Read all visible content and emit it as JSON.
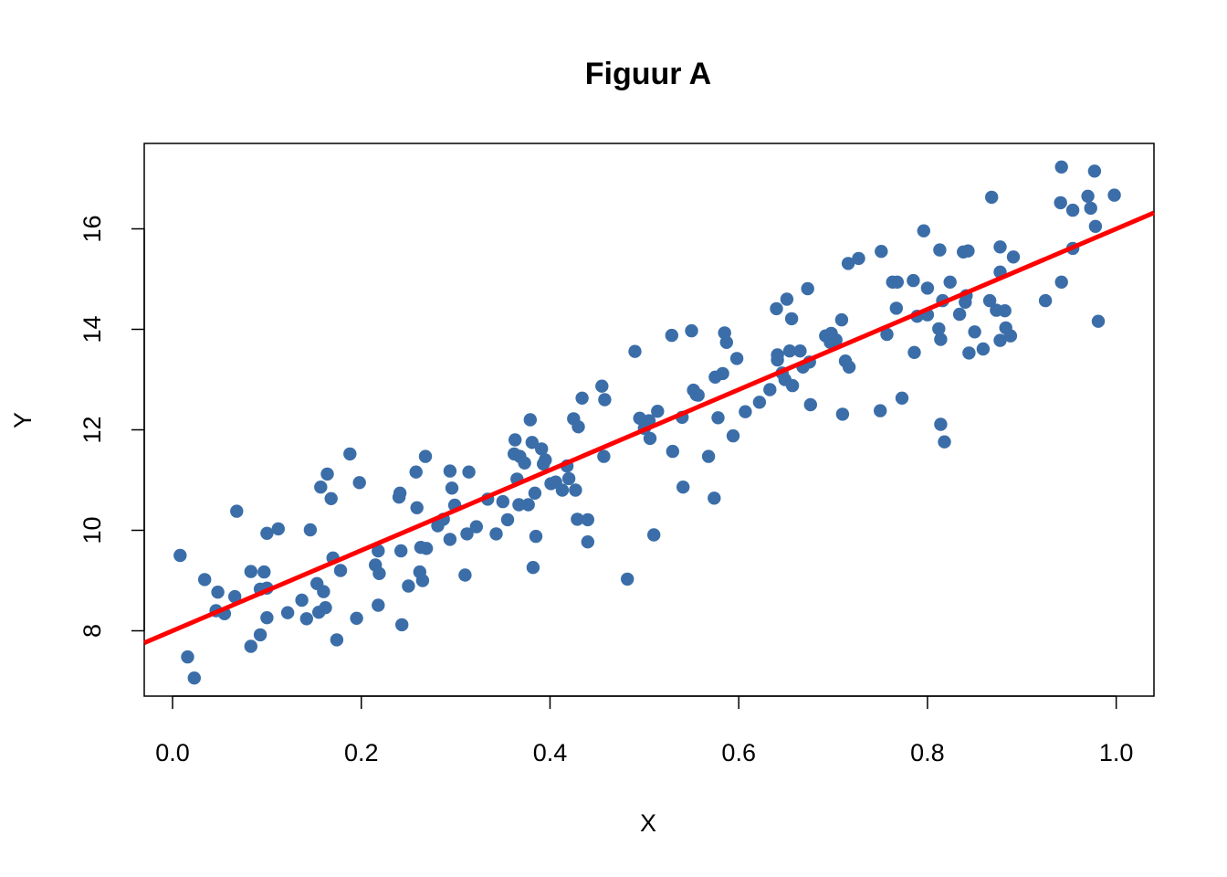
{
  "chart_data": {
    "type": "scatter",
    "title": "Figuur A",
    "xlabel": "X",
    "ylabel": "Y",
    "xlim": [
      -0.03,
      1.04
    ],
    "ylim": [
      6.7,
      17.7
    ],
    "x_ticks": [
      0.0,
      0.2,
      0.4,
      0.6,
      0.8,
      1.0
    ],
    "x_tick_labels": [
      "0.0",
      "0.2",
      "0.4",
      "0.6",
      "0.8",
      "1.0"
    ],
    "y_ticks": [
      8,
      10,
      12,
      14,
      16
    ],
    "y_tick_labels": [
      "8",
      "10",
      "12",
      "14",
      "16"
    ],
    "grid": false,
    "legend": "none",
    "point_color": "#3B6EA8",
    "line_color": "#FF0000",
    "regression_line": {
      "intercept": 8.0,
      "slope": 8.0
    },
    "points": [
      [
        0.008,
        9.5
      ],
      [
        0.016,
        7.48
      ],
      [
        0.023,
        7.06
      ],
      [
        0.034,
        9.02
      ],
      [
        0.046,
        8.4
      ],
      [
        0.048,
        8.77
      ],
      [
        0.055,
        8.34
      ],
      [
        0.066,
        8.68
      ],
      [
        0.068,
        10.38
      ],
      [
        0.083,
        9.18
      ],
      [
        0.083,
        7.69
      ],
      [
        0.093,
        7.92
      ],
      [
        0.093,
        8.83
      ],
      [
        0.097,
        9.17
      ],
      [
        0.1,
        8.26
      ],
      [
        0.1,
        8.85
      ],
      [
        0.1,
        9.94
      ],
      [
        0.112,
        10.03
      ],
      [
        0.122,
        8.36
      ],
      [
        0.137,
        8.61
      ],
      [
        0.142,
        8.24
      ],
      [
        0.146,
        10.01
      ],
      [
        0.153,
        8.94
      ],
      [
        0.155,
        8.37
      ],
      [
        0.157,
        10.86
      ],
      [
        0.16,
        8.78
      ],
      [
        0.162,
        8.46
      ],
      [
        0.164,
        11.12
      ],
      [
        0.168,
        10.63
      ],
      [
        0.17,
        9.45
      ],
      [
        0.174,
        7.82
      ],
      [
        0.178,
        9.2
      ],
      [
        0.188,
        11.52
      ],
      [
        0.195,
        8.25
      ],
      [
        0.198,
        10.95
      ],
      [
        0.215,
        9.31
      ],
      [
        0.218,
        9.59
      ],
      [
        0.218,
        8.51
      ],
      [
        0.219,
        9.14
      ],
      [
        0.24,
        10.66
      ],
      [
        0.241,
        10.74
      ],
      [
        0.242,
        9.59
      ],
      [
        0.243,
        8.12
      ],
      [
        0.25,
        8.89
      ],
      [
        0.258,
        11.16
      ],
      [
        0.259,
        10.45
      ],
      [
        0.262,
        9.17
      ],
      [
        0.263,
        9.66
      ],
      [
        0.265,
        9.0
      ],
      [
        0.268,
        11.47
      ],
      [
        0.269,
        9.64
      ],
      [
        0.281,
        10.09
      ],
      [
        0.287,
        10.22
      ],
      [
        0.294,
        9.82
      ],
      [
        0.294,
        11.18
      ],
      [
        0.296,
        10.84
      ],
      [
        0.299,
        10.5
      ],
      [
        0.31,
        9.11
      ],
      [
        0.312,
        9.93
      ],
      [
        0.314,
        11.16
      ],
      [
        0.322,
        10.07
      ],
      [
        0.334,
        10.62
      ],
      [
        0.343,
        9.93
      ],
      [
        0.35,
        10.57
      ],
      [
        0.355,
        10.21
      ],
      [
        0.362,
        11.52
      ],
      [
        0.363,
        11.8
      ],
      [
        0.365,
        11.02
      ],
      [
        0.367,
        10.51
      ],
      [
        0.368,
        11.47
      ],
      [
        0.373,
        11.34
      ],
      [
        0.377,
        10.51
      ],
      [
        0.379,
        12.2
      ],
      [
        0.381,
        11.75
      ],
      [
        0.382,
        9.26
      ],
      [
        0.384,
        10.74
      ],
      [
        0.385,
        9.88
      ],
      [
        0.391,
        11.62
      ],
      [
        0.393,
        11.32
      ],
      [
        0.395,
        11.4
      ],
      [
        0.401,
        10.93
      ],
      [
        0.406,
        10.96
      ],
      [
        0.413,
        10.8
      ],
      [
        0.418,
        11.28
      ],
      [
        0.42,
        11.03
      ],
      [
        0.425,
        12.22
      ],
      [
        0.427,
        10.8
      ],
      [
        0.429,
        10.22
      ],
      [
        0.43,
        12.06
      ],
      [
        0.434,
        12.63
      ],
      [
        0.44,
        10.21
      ],
      [
        0.44,
        9.77
      ],
      [
        0.455,
        12.87
      ],
      [
        0.457,
        11.47
      ],
      [
        0.458,
        12.6
      ],
      [
        0.482,
        9.03
      ],
      [
        0.49,
        13.56
      ],
      [
        0.495,
        12.23
      ],
      [
        0.5,
        12.03
      ],
      [
        0.505,
        12.18
      ],
      [
        0.506,
        11.83
      ],
      [
        0.51,
        9.91
      ],
      [
        0.514,
        12.37
      ],
      [
        0.529,
        13.88
      ],
      [
        0.53,
        11.57
      ],
      [
        0.54,
        12.25
      ],
      [
        0.541,
        10.86
      ],
      [
        0.55,
        13.97
      ],
      [
        0.552,
        12.79
      ],
      [
        0.555,
        12.7
      ],
      [
        0.557,
        12.69
      ],
      [
        0.568,
        11.47
      ],
      [
        0.574,
        10.64
      ],
      [
        0.575,
        13.05
      ],
      [
        0.578,
        12.24
      ],
      [
        0.583,
        13.12
      ],
      [
        0.585,
        13.93
      ],
      [
        0.587,
        13.74
      ],
      [
        0.594,
        11.88
      ],
      [
        0.598,
        13.42
      ],
      [
        0.607,
        12.36
      ],
      [
        0.622,
        12.55
      ],
      [
        0.633,
        12.8
      ],
      [
        0.64,
        14.41
      ],
      [
        0.641,
        13.39
      ],
      [
        0.641,
        13.49
      ],
      [
        0.646,
        13.13
      ],
      [
        0.649,
        13.0
      ],
      [
        0.651,
        14.6
      ],
      [
        0.654,
        13.57
      ],
      [
        0.656,
        14.21
      ],
      [
        0.657,
        12.88
      ],
      [
        0.665,
        13.57
      ],
      [
        0.668,
        13.25
      ],
      [
        0.673,
        14.81
      ],
      [
        0.675,
        13.35
      ],
      [
        0.676,
        12.5
      ],
      [
        0.692,
        13.87
      ],
      [
        0.697,
        13.74
      ],
      [
        0.698,
        13.92
      ],
      [
        0.703,
        13.79
      ],
      [
        0.709,
        14.19
      ],
      [
        0.71,
        12.31
      ],
      [
        0.713,
        13.37
      ],
      [
        0.716,
        15.31
      ],
      [
        0.717,
        13.25
      ],
      [
        0.727,
        15.41
      ],
      [
        0.75,
        12.38
      ],
      [
        0.751,
        15.55
      ],
      [
        0.757,
        13.9
      ],
      [
        0.763,
        14.94
      ],
      [
        0.767,
        14.42
      ],
      [
        0.768,
        14.94
      ],
      [
        0.773,
        12.63
      ],
      [
        0.785,
        14.97
      ],
      [
        0.786,
        13.54
      ],
      [
        0.789,
        14.26
      ],
      [
        0.796,
        15.96
      ],
      [
        0.8,
        14.82
      ],
      [
        0.8,
        14.29
      ],
      [
        0.812,
        14.01
      ],
      [
        0.813,
        15.58
      ],
      [
        0.814,
        12.11
      ],
      [
        0.814,
        13.8
      ],
      [
        0.816,
        14.57
      ],
      [
        0.818,
        11.76
      ],
      [
        0.824,
        14.94
      ],
      [
        0.834,
        14.3
      ],
      [
        0.838,
        15.54
      ],
      [
        0.84,
        14.54
      ],
      [
        0.841,
        14.67
      ],
      [
        0.843,
        15.56
      ],
      [
        0.844,
        13.53
      ],
      [
        0.85,
        13.95
      ],
      [
        0.859,
        13.61
      ],
      [
        0.866,
        14.57
      ],
      [
        0.868,
        16.63
      ],
      [
        0.873,
        14.38
      ],
      [
        0.877,
        15.64
      ],
      [
        0.877,
        15.14
      ],
      [
        0.877,
        13.78
      ],
      [
        0.882,
        14.37
      ],
      [
        0.883,
        14.03
      ],
      [
        0.888,
        13.87
      ],
      [
        0.891,
        15.44
      ],
      [
        0.925,
        14.57
      ],
      [
        0.941,
        16.52
      ],
      [
        0.942,
        17.23
      ],
      [
        0.942,
        14.94
      ],
      [
        0.954,
        16.37
      ],
      [
        0.954,
        15.61
      ],
      [
        0.97,
        16.65
      ],
      [
        0.973,
        16.41
      ],
      [
        0.977,
        17.15
      ],
      [
        0.978,
        16.05
      ],
      [
        0.981,
        14.16
      ],
      [
        0.998,
        16.67
      ]
    ]
  }
}
